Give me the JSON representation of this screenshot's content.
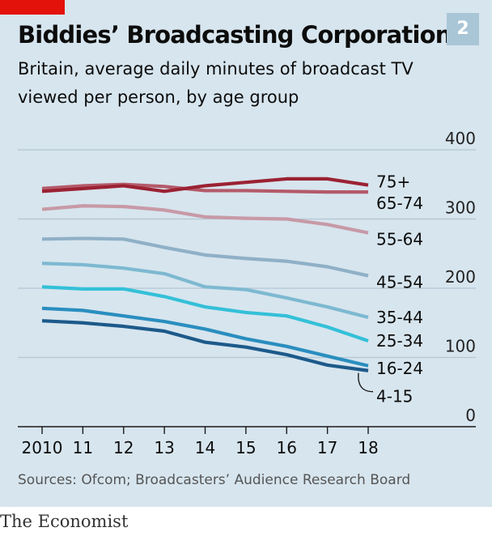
{
  "header": {
    "title": "Biddies’ Broadcasting Corporation",
    "chart_number": "2",
    "subtitle_lines": [
      "Britain, average daily minutes of broadcast TV",
      "viewed per person, by age group"
    ]
  },
  "source": "Sources: Ofcom; Broadcasters’ Audience Research Board",
  "logo": "The Economist",
  "colors": {
    "background": "#d7e5ee",
    "accent_red": "#e3120b",
    "badge": "#a9c6d7"
  },
  "chart_data": {
    "type": "line",
    "title": "Biddies’ Broadcasting Corporation",
    "subtitle": "Britain, average daily minutes of broadcast TV viewed per person, by age group",
    "x": [
      2010,
      2011,
      2012,
      2013,
      2014,
      2015,
      2016,
      2017,
      2018
    ],
    "xtick_labels": [
      "2010",
      "11",
      "12",
      "13",
      "14",
      "15",
      "16",
      "17",
      "18"
    ],
    "ylim": [
      0,
      400
    ],
    "yticks": [
      0,
      100,
      200,
      300,
      400
    ],
    "grid": true,
    "y_axis_side": "right",
    "series": [
      {
        "name": "75+",
        "color": "#9b2233",
        "values": [
          340,
          344,
          348,
          340,
          348,
          353,
          358,
          358,
          349
        ]
      },
      {
        "name": "65-74",
        "color": "#b45a6a",
        "values": [
          344,
          348,
          350,
          347,
          341,
          341,
          340,
          339,
          339
        ]
      },
      {
        "name": "55-64",
        "color": "#c79aa6",
        "values": [
          314,
          319,
          318,
          313,
          303,
          301,
          300,
          292,
          280
        ]
      },
      {
        "name": "45-54",
        "color": "#8fb0c6",
        "values": [
          271,
          272,
          271,
          259,
          248,
          243,
          239,
          231,
          218
        ]
      },
      {
        "name": "35-44",
        "color": "#7db9d1",
        "values": [
          236,
          234,
          229,
          221,
          202,
          198,
          186,
          173,
          158
        ]
      },
      {
        "name": "25-34",
        "color": "#34c0d8",
        "values": [
          202,
          199,
          199,
          188,
          173,
          165,
          160,
          144,
          124
        ]
      },
      {
        "name": "16-24",
        "color": "#2a8ebf",
        "values": [
          171,
          168,
          160,
          152,
          141,
          127,
          116,
          102,
          88
        ]
      },
      {
        "name": "4-15",
        "color": "#1c5a8a",
        "values": [
          153,
          150,
          145,
          138,
          122,
          115,
          104,
          89,
          81
        ]
      }
    ]
  }
}
